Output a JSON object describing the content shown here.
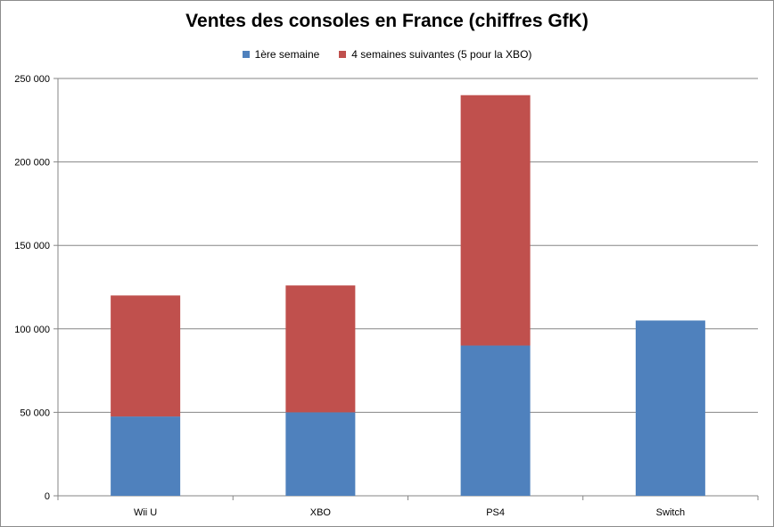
{
  "chart_data": {
    "type": "bar",
    "stacked": true,
    "title": "Ventes des consoles en France (chiffres GfK)",
    "xlabel": "",
    "ylabel": "",
    "categories": [
      "Wii U",
      "XBO",
      "PS4",
      "Switch"
    ],
    "series": [
      {
        "name": "1ère semaine",
        "color": "#4f81bd",
        "values": [
          47500,
          50000,
          90000,
          105000
        ]
      },
      {
        "name": "4 semaines suivantes (5 pour la XBO)",
        "color": "#c0504d",
        "values": [
          72500,
          76000,
          150000,
          0
        ]
      }
    ],
    "ylim": [
      0,
      250000
    ],
    "yticks": [
      0,
      50000,
      100000,
      150000,
      200000,
      250000
    ],
    "ytick_labels": [
      "0",
      "50 000",
      "100 000",
      "150 000",
      "200 000",
      "250 000"
    ],
    "grid": true,
    "legend_position": "top"
  }
}
